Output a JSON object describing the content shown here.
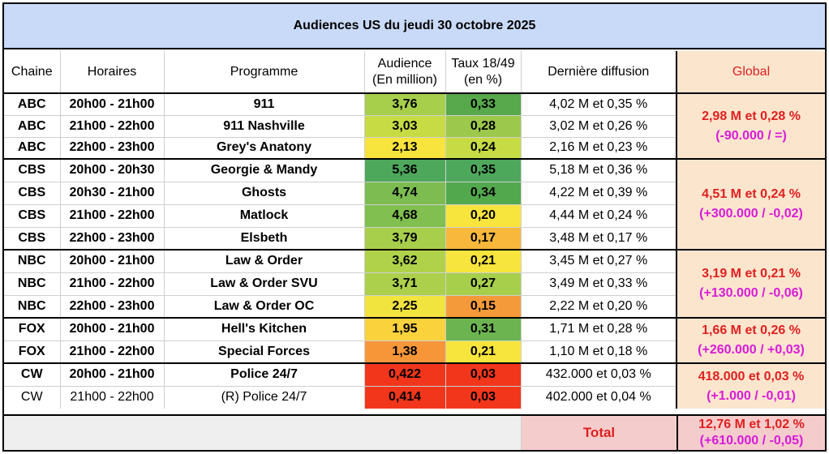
{
  "title": "Audiences US du jeudi 30 octobre 2025",
  "headers": {
    "chaine": "Chaine",
    "horaires": "Horaires",
    "programme": "Programme",
    "audience_l1": "Audience",
    "audience_l2": "(En million)",
    "taux_l1": "Taux 18/49",
    "taux_l2": "(en %)",
    "derniere": "Dernière diffusion",
    "global": "Global"
  },
  "rows": [
    {
      "chaine": "ABC",
      "horaires": "20h00 - 21h00",
      "programme": "911",
      "audience": "3,76",
      "taux": "0,33",
      "derniere": "4,02 M et 0,35 %",
      "bold": true,
      "aud_color": "#a7cf4c",
      "taux_color": "#58a84c"
    },
    {
      "chaine": "ABC",
      "horaires": "21h00 - 22h00",
      "programme": "911 Nashville",
      "audience": "3,03",
      "taux": "0,28",
      "derniere": "3,02 M et 0,26 %",
      "bold": true,
      "aud_color": "#c7dc44",
      "taux_color": "#9cc84c"
    },
    {
      "chaine": "ABC",
      "horaires": "22h00 - 23h00",
      "programme": "Grey's Anatony",
      "audience": "2,13",
      "taux": "0,24",
      "derniere": "2,16 M et 0,23 %",
      "bold": true,
      "aud_color": "#f7e43c",
      "taux_color": "#c7dc44"
    },
    {
      "chaine": "CBS",
      "horaires": "20h00 - 20h30",
      "programme": "Georgie & Mandy",
      "audience": "5,36",
      "taux": "0,35",
      "derniere": "5,18 M et 0,36 %",
      "bold": true,
      "aud_color": "#4ea85c",
      "taux_color": "#4ea85c"
    },
    {
      "chaine": "CBS",
      "horaires": "20h30 - 21h00",
      "programme": "Ghosts",
      "audience": "4,74",
      "taux": "0,34",
      "derniere": "4,22 M et 0,39 %",
      "bold": true,
      "aud_color": "#7cbc50",
      "taux_color": "#52a84c"
    },
    {
      "chaine": "CBS",
      "horaires": "21h00 - 22h00",
      "programme": "Matlock",
      "audience": "4,68",
      "taux": "0,20",
      "derniere": "4,44 M et 0,24 %",
      "bold": true,
      "aud_color": "#80bf50",
      "taux_color": "#f7e43c"
    },
    {
      "chaine": "CBS",
      "horaires": "22h00 - 23h00",
      "programme": "Elsbeth",
      "audience": "3,79",
      "taux": "0,17",
      "derniere": "3,48 M et 0,17 %",
      "bold": true,
      "aud_color": "#a7cf4c",
      "taux_color": "#f7b83c"
    },
    {
      "chaine": "NBC",
      "horaires": "20h00 - 21h00",
      "programme": "Law & Order",
      "audience": "3,62",
      "taux": "0,21",
      "derniere": "3,45 M et 0,27 %",
      "bold": true,
      "aud_color": "#b0d24a",
      "taux_color": "#f7e43c"
    },
    {
      "chaine": "NBC",
      "horaires": "21h00 - 22h00",
      "programme": "Law & Order SVU",
      "audience": "3,71",
      "taux": "0,27",
      "derniere": "3,49 M et 0,33 %",
      "bold": true,
      "aud_color": "#acd04b",
      "taux_color": "#a7cf4c"
    },
    {
      "chaine": "NBC",
      "horaires": "22h00 - 23h00",
      "programme": "Law & Order OC",
      "audience": "2,25",
      "taux": "0,15",
      "derniere": "2,22 M et 0,20 %",
      "bold": true,
      "aud_color": "#f2e43e",
      "taux_color": "#f59a3a"
    },
    {
      "chaine": "FOX",
      "horaires": "20h00 - 21h00",
      "programme": "Hell's Kitchen",
      "audience": "1,95",
      "taux": "0,31",
      "derniere": "1,71 M et 0,28 %",
      "bold": true,
      "aud_color": "#f9d23c",
      "taux_color": "#6cb450"
    },
    {
      "chaine": "FOX",
      "horaires": "21h00 - 22h00",
      "programme": "Special Forces",
      "audience": "1,38",
      "taux": "0,21",
      "derniere": "1,10 M et 0,18 %",
      "bold": true,
      "aud_color": "#f79638",
      "taux_color": "#f7e43c"
    },
    {
      "chaine": "CW",
      "horaires": "20h00 - 21h00",
      "programme": "Police 24/7",
      "audience": "0,422",
      "taux": "0,03",
      "derniere": "432.000 et 0,03 %",
      "bold": true,
      "aud_color": "#f2361c",
      "taux_color": "#f2361c"
    },
    {
      "chaine": "CW",
      "horaires": "21h00 - 22h00",
      "programme": "(R) Police 24/7",
      "audience": "0,414",
      "taux": "0,03",
      "derniere": "402.000 et 0,04 %",
      "bold": false,
      "aud_color": "#f2361c",
      "taux_color": "#f2361c"
    }
  ],
  "globals": [
    {
      "line1": "2,98 M et 0,28 %",
      "line2": "(-90.000 / =)"
    },
    {
      "line1": "4,51 M et 0,24 %",
      "line2": "(+300.000 / -0,02)"
    },
    {
      "line1": "3,19 M et 0,21 %",
      "line2": "(+130.000 / -0,06)"
    },
    {
      "line1": "1,66 M et 0,26 %",
      "line2": "(+260.000 / +0,03)"
    },
    {
      "line1": "418.000 et 0,03 %",
      "line2": "(+1.000 / -0,01)"
    }
  ],
  "footer": {
    "label": "Total",
    "line1": "12,76 M et 1,02 %",
    "line2": "(+610.000 / -0,05)"
  }
}
